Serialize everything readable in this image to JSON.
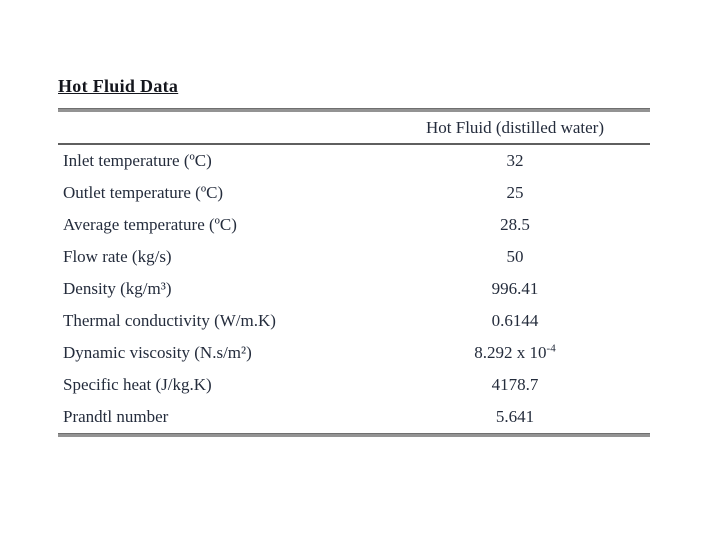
{
  "page": {
    "background_color": "#ffffff",
    "text_color": "#242c3c",
    "rule_thick_color": "#939393",
    "rule_thin_color": "#5f5f5f"
  },
  "slide": {
    "title": "Hot Fluid Data"
  },
  "table": {
    "column_header": "Hot Fluid (distilled water)",
    "rows": [
      {
        "label": "Inlet temperature (ºC)",
        "value": "32",
        "value_sup": ""
      },
      {
        "label": "Outlet temperature (ºC)",
        "value": "25",
        "value_sup": ""
      },
      {
        "label": "Average temperature (ºC)",
        "value": "28.5",
        "value_sup": ""
      },
      {
        "label": "Flow rate (kg/s)",
        "value": "50",
        "value_sup": ""
      },
      {
        "label": "Density (kg/m³)",
        "value": "996.41",
        "value_sup": ""
      },
      {
        "label": "Thermal conductivity (W/m.K)",
        "value": "0.6144",
        "value_sup": ""
      },
      {
        "label": "Dynamic viscosity (N.s/m²)",
        "value": "8.292 x 10",
        "value_sup": "-4"
      },
      {
        "label": "Specific heat (J/kg.K)",
        "value": "4178.7",
        "value_sup": ""
      },
      {
        "label": "Prandtl number",
        "value": "5.641",
        "value_sup": ""
      }
    ]
  }
}
